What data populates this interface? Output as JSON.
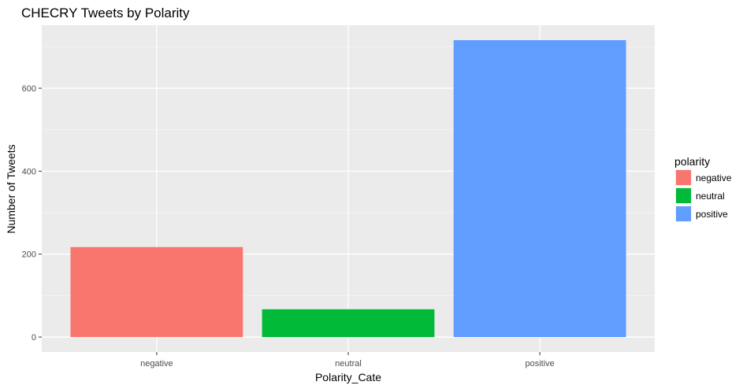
{
  "chart_data": {
    "type": "bar",
    "title": "CHECRY Tweets by Polarity",
    "xlabel": "Polarity_Cate",
    "ylabel": "Number of Tweets",
    "categories": [
      "negative",
      "neutral",
      "positive"
    ],
    "values": [
      217,
      67,
      716
    ],
    "colors": [
      "#F8766D",
      "#00BA38",
      "#619CFF"
    ],
    "ylim": [
      -36,
      752
    ],
    "yticks": [
      0,
      200,
      400,
      600
    ],
    "grid": true,
    "legend": {
      "title": "polarity",
      "placement": "right",
      "entries": [
        "negative",
        "neutral",
        "positive"
      ]
    }
  }
}
